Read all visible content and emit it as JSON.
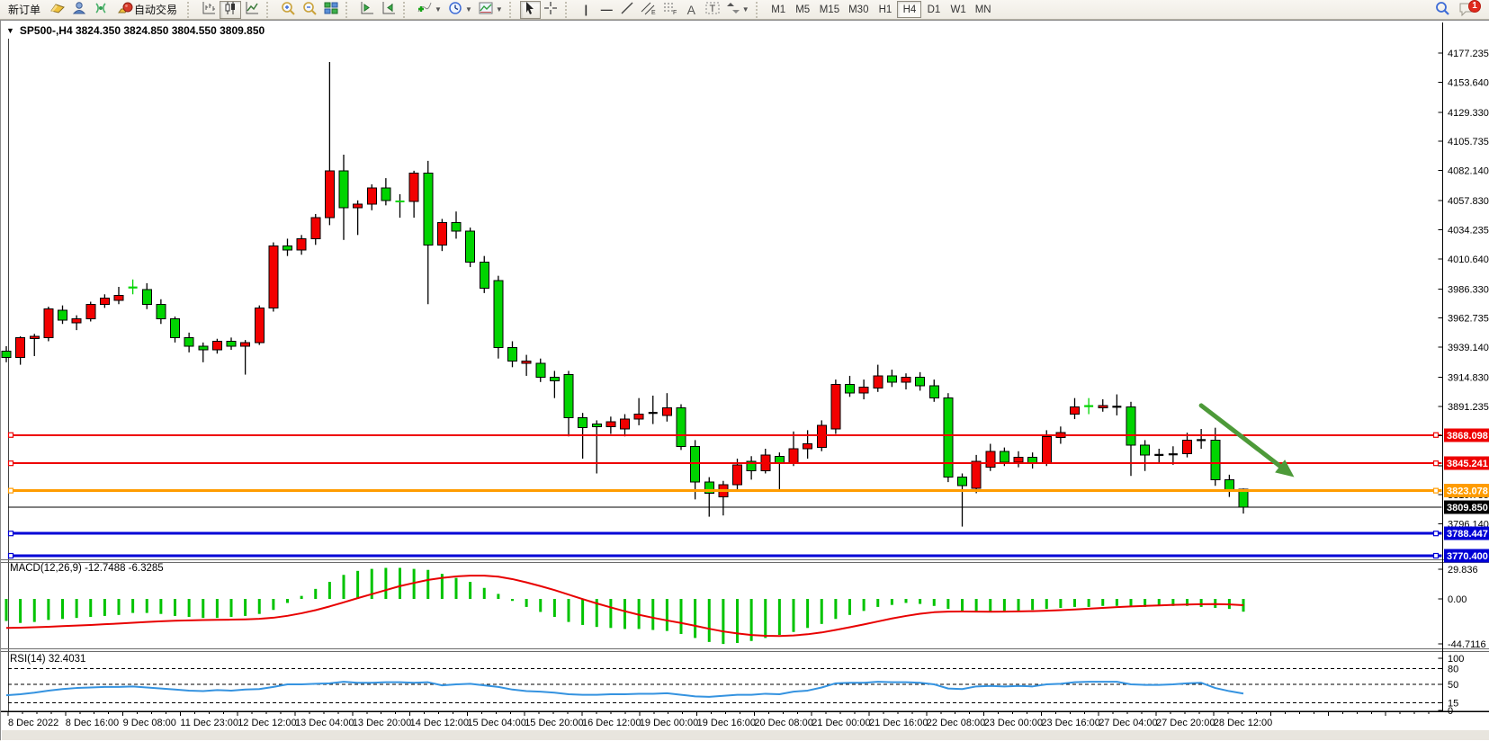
{
  "toolbar": {
    "new_order_label": "新订单",
    "autotrading_label": "自动交易",
    "timeframes": [
      "M1",
      "M5",
      "M15",
      "M30",
      "H1",
      "H4",
      "D1",
      "W1",
      "MN"
    ],
    "active_timeframe": "H4",
    "notification_count": "1"
  },
  "chart": {
    "title": "SP500-,H4  3824.350 3824.850 3804.550 3809.850"
  },
  "price_axis": {
    "ticks": [
      "4177.235",
      "4153.640",
      "4129.330",
      "4105.735",
      "4082.140",
      "4057.830",
      "4034.235",
      "4010.640",
      "3986.330",
      "3962.735",
      "3939.140",
      "3914.830",
      "3891.235",
      "3867.640",
      "3843.330",
      "3819.735",
      "3796.140"
    ]
  },
  "time_axis": {
    "labels": [
      "8 Dec 2022",
      "8 Dec 16:00",
      "9 Dec 08:00",
      "11 Dec 23:00",
      "12 Dec 12:00",
      "13 Dec 04:00",
      "13 Dec 20:00",
      "14 Dec 12:00",
      "15 Dec 04:00",
      "15 Dec 20:00",
      "16 Dec 12:00",
      "19 Dec 00:00",
      "19 Dec 16:00",
      "20 Dec 08:00",
      "21 Dec 00:00",
      "21 Dec 16:00",
      "22 Dec 08:00",
      "23 Dec 00:00",
      "23 Dec 16:00",
      "27 Dec 04:00",
      "27 Dec 20:00",
      "28 Dec 12:00"
    ]
  },
  "indicators": {
    "macd": {
      "label": "MACD(12,26,9) -12.7488 -6.3285",
      "axis_ticks": [
        "29.836",
        "0.00",
        "-44.7116"
      ]
    },
    "rsi": {
      "label": "RSI(14) 32.4031",
      "axis_ticks": [
        "100",
        "80",
        "50",
        "15",
        "0"
      ]
    }
  },
  "colors": {
    "candle_up": "#f20000",
    "candle_down": "#00d400",
    "neutral": "#000000",
    "macd_hist": "#00c300",
    "macd_signal": "#e80000",
    "rsi_line": "#3593e0",
    "arrow": "#4d9a39",
    "axis_text": "#000000"
  },
  "chart_data": {
    "type": "candlestick",
    "symbol": "SP500-",
    "timeframe": "H4",
    "ohlc_current": {
      "open": 3824.35,
      "high": 3824.85,
      "low": 3804.55,
      "close": 3809.85
    },
    "candles": [
      [
        3936,
        3940,
        3927,
        3931,
        "d"
      ],
      [
        3931,
        3948,
        3925,
        3947,
        "u"
      ],
      [
        3946,
        3950,
        3932,
        3948,
        "u"
      ],
      [
        3947,
        3972,
        3944,
        3970,
        "u"
      ],
      [
        3969,
        3973,
        3958,
        3961,
        "d"
      ],
      [
        3959,
        3965,
        3953,
        3962,
        "u"
      ],
      [
        3962,
        3976,
        3960,
        3974,
        "u"
      ],
      [
        3974,
        3982,
        3971,
        3979,
        "u"
      ],
      [
        3977,
        3988,
        3974,
        3981,
        "u"
      ],
      [
        3987,
        3994,
        3982,
        3988,
        "g"
      ],
      [
        3986,
        3991,
        3970,
        3974,
        "d"
      ],
      [
        3974,
        3978,
        3958,
        3962,
        "d"
      ],
      [
        3962,
        3964,
        3943,
        3947,
        "d"
      ],
      [
        3947,
        3951,
        3935,
        3940,
        "d"
      ],
      [
        3940,
        3943,
        3927,
        3937,
        "d"
      ],
      [
        3937,
        3946,
        3934,
        3944,
        "u"
      ],
      [
        3944,
        3947,
        3937,
        3940,
        "d"
      ],
      [
        3940,
        3945,
        3917,
        3943,
        "u"
      ],
      [
        3943,
        3973,
        3941,
        3971,
        "u"
      ],
      [
        3971,
        4024,
        3968,
        4021,
        "u"
      ],
      [
        4021,
        4027,
        4013,
        4018,
        "d"
      ],
      [
        4018,
        4030,
        4014,
        4027,
        "u"
      ],
      [
        4027,
        4047,
        4022,
        4044,
        "u"
      ],
      [
        4044,
        4170,
        4038,
        4082,
        "u"
      ],
      [
        4082,
        4095,
        4026,
        4052,
        "d"
      ],
      [
        4052,
        4058,
        4030,
        4055,
        "u"
      ],
      [
        4055,
        4071,
        4050,
        4068,
        "u"
      ],
      [
        4068,
        4076,
        4054,
        4058,
        "d"
      ],
      [
        4058,
        4063,
        4044,
        4057,
        "d"
      ],
      [
        4057,
        4082,
        4044,
        4080,
        "u"
      ],
      [
        4080,
        4090,
        3974,
        4022,
        "d"
      ],
      [
        4022,
        4043,
        4017,
        4040,
        "u"
      ],
      [
        4040,
        4049,
        4027,
        4033,
        "d"
      ],
      [
        4033,
        4036,
        4004,
        4008,
        "d"
      ],
      [
        4008,
        4013,
        3983,
        3987,
        "d"
      ],
      [
        3993,
        3997,
        3930,
        3939,
        "d"
      ],
      [
        3939,
        3944,
        3923,
        3928,
        "d"
      ],
      [
        3928,
        3933,
        3916,
        3926,
        "u"
      ],
      [
        3926,
        3930,
        3911,
        3915,
        "d"
      ],
      [
        3915,
        3920,
        3898,
        3912,
        "d"
      ],
      [
        3917,
        3920,
        3867,
        3882,
        "d"
      ],
      [
        3882,
        3886,
        3849,
        3874,
        "d"
      ],
      [
        3877,
        3880,
        3837,
        3875,
        "d"
      ],
      [
        3875,
        3883,
        3869,
        3879,
        "u"
      ],
      [
        3873,
        3885,
        3867,
        3881,
        "u"
      ],
      [
        3881,
        3898,
        3876,
        3885,
        "u"
      ],
      [
        3885,
        3900,
        3877,
        3887,
        "n"
      ],
      [
        3884,
        3902,
        3879,
        3890,
        "u"
      ],
      [
        3890,
        3893,
        3856,
        3859,
        "d"
      ],
      [
        3859,
        3864,
        3816,
        3830,
        "d"
      ],
      [
        3830,
        3834,
        3802,
        3821,
        "d"
      ],
      [
        3818,
        3831,
        3803,
        3828,
        "u"
      ],
      [
        3828,
        3849,
        3824,
        3844,
        "u"
      ],
      [
        3847,
        3851,
        3832,
        3839,
        "d"
      ],
      [
        3839,
        3857,
        3837,
        3852,
        "u"
      ],
      [
        3851,
        3854,
        3823,
        3845,
        "d"
      ],
      [
        3845,
        3871,
        3843,
        3857,
        "u"
      ],
      [
        3857,
        3872,
        3849,
        3861,
        "u"
      ],
      [
        3858,
        3880,
        3855,
        3876,
        "u"
      ],
      [
        3873,
        3913,
        3869,
        3909,
        "u"
      ],
      [
        3909,
        3916,
        3899,
        3902,
        "d"
      ],
      [
        3902,
        3913,
        3897,
        3907,
        "u"
      ],
      [
        3906,
        3925,
        3903,
        3916,
        "u"
      ],
      [
        3916,
        3921,
        3907,
        3911,
        "d"
      ],
      [
        3911,
        3918,
        3905,
        3915,
        "u"
      ],
      [
        3915,
        3919,
        3904,
        3908,
        "d"
      ],
      [
        3908,
        3913,
        3895,
        3898,
        "d"
      ],
      [
        3898,
        3902,
        3830,
        3834,
        "d"
      ],
      [
        3834,
        3837,
        3794,
        3827,
        "d"
      ],
      [
        3825,
        3852,
        3821,
        3847,
        "u"
      ],
      [
        3842,
        3861,
        3839,
        3855,
        "u"
      ],
      [
        3855,
        3858,
        3843,
        3846,
        "d"
      ],
      [
        3846,
        3855,
        3842,
        3850,
        "u"
      ],
      [
        3850,
        3854,
        3841,
        3845,
        "d"
      ],
      [
        3845,
        3872,
        3843,
        3867,
        "u"
      ],
      [
        3866,
        3875,
        3861,
        3870,
        "u"
      ],
      [
        3885,
        3898,
        3881,
        3891,
        "u"
      ],
      [
        3891,
        3898,
        3885,
        3892,
        "g"
      ],
      [
        3892,
        3897,
        3887,
        3890,
        "u"
      ],
      [
        3891,
        3901,
        3884,
        3891,
        "n"
      ],
      [
        3891,
        3895,
        3835,
        3860,
        "d"
      ],
      [
        3860,
        3864,
        3839,
        3852,
        "d"
      ],
      [
        3852,
        3857,
        3846,
        3852,
        "n"
      ],
      [
        3852,
        3859,
        3844,
        3853,
        "n"
      ],
      [
        3853,
        3870,
        3850,
        3864,
        "u"
      ],
      [
        3864,
        3873,
        3857,
        3864,
        "n"
      ],
      [
        3864,
        3874,
        3827,
        3832,
        "d"
      ],
      [
        3832,
        3836,
        3818,
        3823,
        "d"
      ],
      [
        3824.35,
        3824.85,
        3804.55,
        3809.85,
        "d"
      ]
    ],
    "hlines": [
      {
        "label": "3868.098",
        "value": 3868.098,
        "color": "#ee0000",
        "width": 2
      },
      {
        "label": "3845.241",
        "value": 3845.241,
        "color": "#ee0000",
        "width": 2
      },
      {
        "label": "3823.078",
        "value": 3823.078,
        "color": "#ff9c00",
        "width": 3
      },
      {
        "label": "3788.447",
        "value": 3788.447,
        "color": "#0000d6",
        "width": 3
      },
      {
        "label": "3770.400",
        "value": 3770.4,
        "color": "#0000d6",
        "width": 3
      }
    ],
    "current_price": {
      "label": "3809.850",
      "value": 3809.85,
      "color": "#000000"
    },
    "macd": {
      "params": "12,26,9",
      "value": -12.7488,
      "signal_value": -6.3285,
      "range": {
        "max": 29.836,
        "min": -44.7116
      },
      "hist": [
        -22,
        -24,
        -23,
        -21,
        -20,
        -19,
        -18,
        -17,
        -16,
        -14,
        -14,
        -15,
        -17,
        -18,
        -19,
        -19,
        -18,
        -17,
        -15,
        -11,
        -4,
        3,
        10,
        17,
        24,
        28,
        30,
        31,
        31,
        30,
        29,
        25,
        21,
        17,
        11,
        5,
        -2,
        -8,
        -13,
        -18,
        -23,
        -26,
        -28,
        -29,
        -30,
        -30,
        -31,
        -32,
        -35,
        -39,
        -43,
        -45,
        -44,
        -42,
        -39,
        -36,
        -33,
        -29,
        -25,
        -20,
        -16,
        -12,
        -8,
        -6,
        -4,
        -5,
        -7,
        -10,
        -12,
        -13,
        -13,
        -12,
        -12,
        -11,
        -10,
        -9,
        -8,
        -8,
        -7,
        -7,
        -8,
        -8,
        -7,
        -7,
        -7,
        -8,
        -9,
        -10,
        -12.75
      ],
      "signal": [
        -29,
        -28.7,
        -28.3,
        -27.8,
        -27.2,
        -26.6,
        -26,
        -25.3,
        -24.6,
        -23.8,
        -23,
        -22.3,
        -21.8,
        -21.4,
        -21.1,
        -20.9,
        -20.7,
        -20.4,
        -19.9,
        -18.8,
        -16.9,
        -14.3,
        -11.2,
        -7.5,
        -3.4,
        0.8,
        4.8,
        8.8,
        12.8,
        16,
        19,
        21,
        22.5,
        23.2,
        23.2,
        22.2,
        19.8,
        16.5,
        12.8,
        8.8,
        4.3,
        -0.2,
        -4.5,
        -8.5,
        -12.3,
        -15.8,
        -18.8,
        -21.5,
        -24,
        -26.8,
        -29.8,
        -32.5,
        -34.5,
        -36,
        -36.8,
        -37,
        -36.5,
        -35.3,
        -33.5,
        -31,
        -28.3,
        -25.5,
        -22.5,
        -19.5,
        -17,
        -14.8,
        -13.3,
        -12.7,
        -12.6,
        -12.7,
        -12.8,
        -12.7,
        -12.5,
        -12.2,
        -11.8,
        -11.2,
        -10.5,
        -9.8,
        -9,
        -8.2,
        -7.5,
        -7,
        -6.5,
        -6,
        -5.6,
        -5.3,
        -5.2,
        -5.5,
        -6.33
      ]
    },
    "rsi": {
      "period": 14,
      "value": 32.4031,
      "levels": [
        80,
        50,
        15
      ],
      "series": [
        29,
        31,
        34,
        38,
        41,
        43,
        44,
        45,
        45,
        46,
        44,
        42,
        40,
        38,
        37,
        39,
        38,
        40,
        41,
        45,
        50,
        50,
        51,
        52,
        55,
        53,
        53,
        54,
        54,
        53,
        54,
        48,
        50,
        51,
        48,
        45,
        40,
        37,
        36,
        34,
        31,
        30,
        30,
        31,
        31,
        32,
        32,
        33,
        30,
        27,
        26,
        28,
        30,
        30,
        32,
        31,
        36,
        38,
        44,
        52,
        53,
        53,
        55,
        54,
        54,
        53,
        50,
        42,
        41,
        46,
        47,
        46,
        47,
        46,
        50,
        51,
        54,
        55,
        55,
        55,
        50,
        49,
        49,
        50,
        52,
        53,
        43,
        37,
        32.4
      ]
    },
    "annotations": [
      {
        "type": "arrow",
        "b1": 85,
        "p1": 3892,
        "b2": 90.6,
        "p2": 3843,
        "color": "#4d9a39"
      }
    ]
  }
}
